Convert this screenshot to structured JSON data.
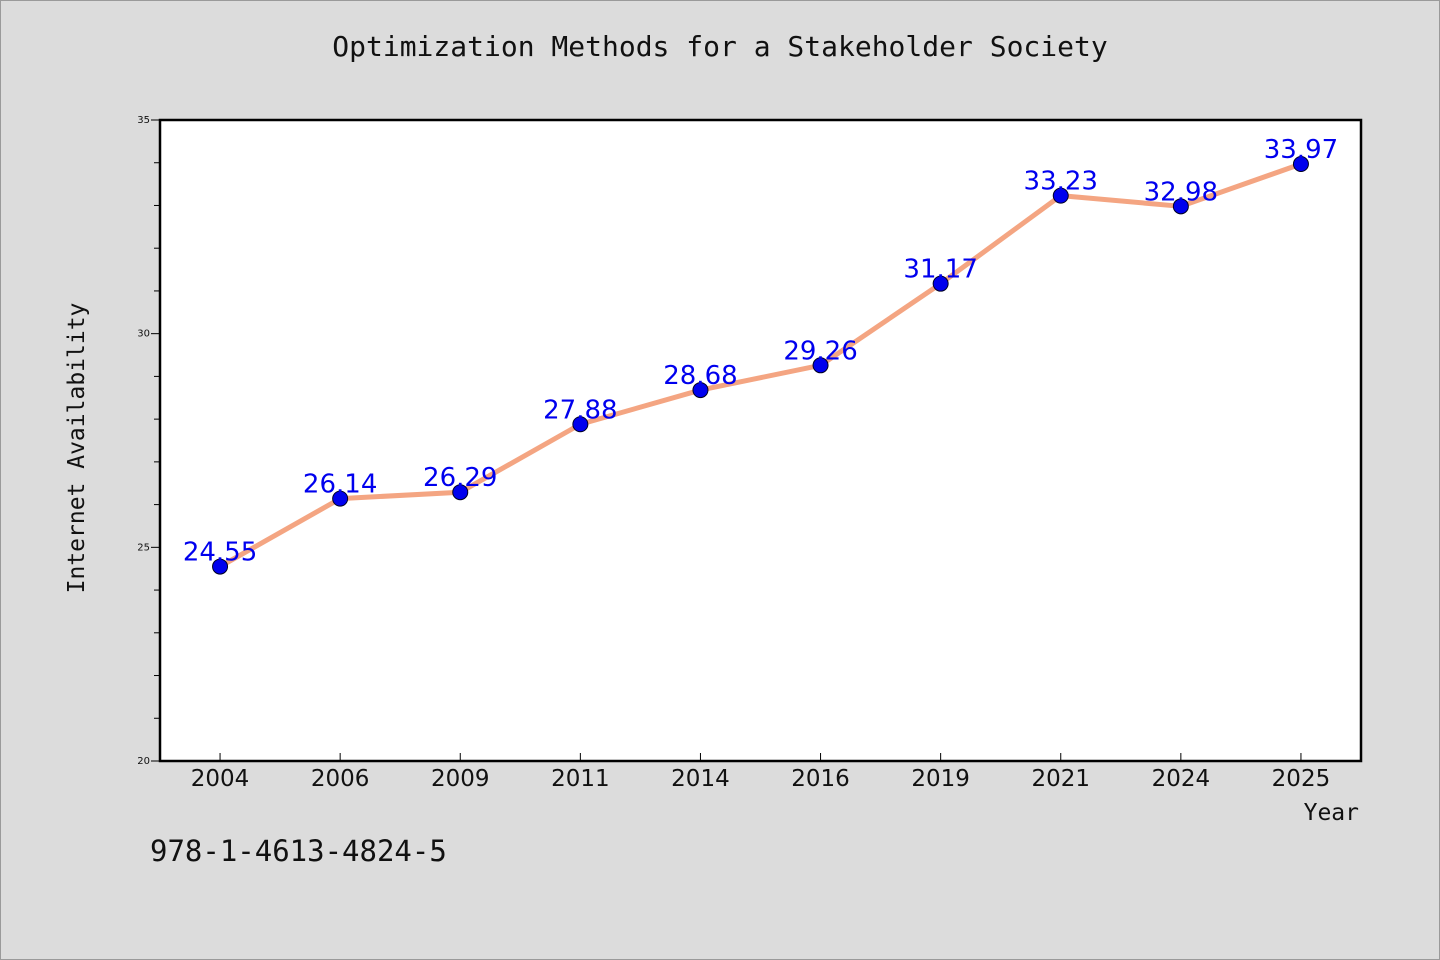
{
  "chart_data": {
    "type": "line",
    "title": "Optimization Methods for a Stakeholder Society",
    "xlabel": "Year",
    "ylabel": "Internet Availability",
    "categories": [
      "2004",
      "2006",
      "2009",
      "2011",
      "2014",
      "2016",
      "2019",
      "2021",
      "2024",
      "2025"
    ],
    "values": [
      24.55,
      26.14,
      26.29,
      27.88,
      28.68,
      29.26,
      31.17,
      33.23,
      32.98,
      33.97
    ],
    "data_labels": [
      "24.55",
      "26.14",
      "26.29",
      "27.88",
      "28.68",
      "29.26",
      "31.17",
      "33.23",
      "32.98",
      "33.97"
    ],
    "ylim": [
      20,
      35
    ],
    "yticks": [
      "20",
      "25",
      "30",
      "35"
    ],
    "line_color": "#f4a582",
    "marker_color": "#0000ee",
    "label_color": "#0000ee",
    "grid": false,
    "legend": "none"
  },
  "footer": {
    "isbn": "978-1-4613-4824-5"
  }
}
